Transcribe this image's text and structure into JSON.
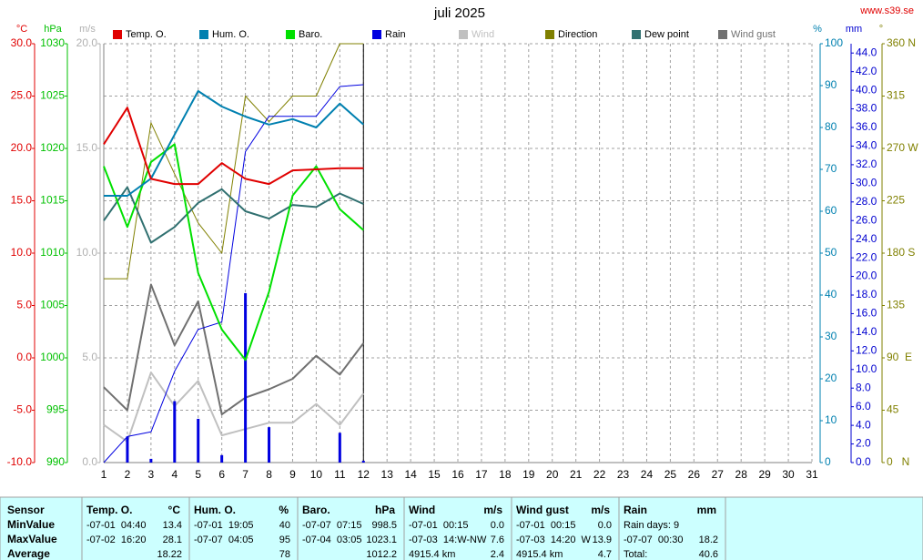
{
  "chart_data": {
    "type": "line",
    "title": "juli 2025",
    "source": "www.s39.se",
    "grid": true,
    "categories": [
      "1",
      "2",
      "3",
      "4",
      "5",
      "6",
      "7",
      "8",
      "9",
      "10",
      "11",
      "12",
      "13",
      "14",
      "15",
      "16",
      "17",
      "18",
      "19",
      "20",
      "21",
      "22",
      "23",
      "24",
      "25",
      "26",
      "27",
      "28",
      "29",
      "30",
      "31"
    ],
    "axes": [
      {
        "label": "°C",
        "color": "#e00000",
        "side": "left",
        "ylim": [
          -10,
          30
        ],
        "yticks": [
          {
            "value": -10,
            "label": "-10.0"
          },
          {
            "value": -5,
            "label": "-5.0"
          },
          {
            "value": 0,
            "label": "0.0"
          },
          {
            "value": 5,
            "label": "5.0"
          },
          {
            "value": 10,
            "label": "10.0"
          },
          {
            "value": 15,
            "label": "15.0"
          },
          {
            "value": 20,
            "label": "20.0"
          },
          {
            "value": 25,
            "label": "25.0"
          },
          {
            "value": 30,
            "label": "30.0"
          }
        ]
      },
      {
        "label": "hPa",
        "color": "#00c000",
        "side": "left",
        "ylim": [
          990,
          1030
        ],
        "yticks": [
          990,
          995,
          1000,
          1005,
          1010,
          1015,
          1020,
          1025,
          1030
        ]
      },
      {
        "label": "m/s",
        "color": "#b0b0b0",
        "side": "left",
        "ylim": [
          0,
          20
        ],
        "yticks": [
          {
            "value": 0,
            "label": "0.0"
          },
          {
            "value": 5,
            "label": "5.0"
          },
          {
            "value": 10,
            "label": "10.0"
          },
          {
            "value": 15,
            "label": "15.0"
          },
          {
            "value": 20,
            "label": "20.0"
          }
        ]
      },
      {
        "label": "%",
        "color": "#0080b0",
        "side": "right",
        "ylim": [
          0,
          100
        ],
        "yticks": [
          0,
          10,
          20,
          30,
          40,
          50,
          60,
          70,
          80,
          90,
          100
        ]
      },
      {
        "label": "mm",
        "color": "#0000d0",
        "side": "right",
        "ylim": [
          0,
          45
        ],
        "yticks": [
          {
            "value": 0,
            "label": "0.0"
          },
          {
            "value": 2,
            "label": "2.0"
          },
          {
            "value": 4,
            "label": "4.0"
          },
          {
            "value": 6,
            "label": "6.0"
          },
          {
            "value": 8,
            "label": "8.0"
          },
          {
            "value": 10,
            "label": "10.0"
          },
          {
            "value": 12,
            "label": "12.0"
          },
          {
            "value": 14,
            "label": "14.0"
          },
          {
            "value": 16,
            "label": "16.0"
          },
          {
            "value": 18,
            "label": "18.0"
          },
          {
            "value": 20,
            "label": "20.0"
          },
          {
            "value": 22,
            "label": "22.0"
          },
          {
            "value": 24,
            "label": "24.0"
          },
          {
            "value": 26,
            "label": "26.0"
          },
          {
            "value": 28,
            "label": "28.0"
          },
          {
            "value": 30,
            "label": "30.0"
          },
          {
            "value": 32,
            "label": "32.0"
          },
          {
            "value": 34,
            "label": "34.0"
          },
          {
            "value": 36,
            "label": "36.0"
          },
          {
            "value": 38,
            "label": "38.0"
          },
          {
            "value": 40,
            "label": "40.0"
          },
          {
            "value": 42,
            "label": "42.0"
          },
          {
            "value": 44,
            "label": "44.0"
          }
        ]
      },
      {
        "label": "°",
        "color": "#808000",
        "side": "right",
        "ylim": [
          0,
          360
        ],
        "yticks": [
          {
            "value": 0,
            "label": "0   N"
          },
          45,
          {
            "value": 90,
            "label": "90  E"
          },
          135,
          {
            "value": 180,
            "label": "180 S"
          },
          225,
          {
            "value": 270,
            "label": "270 W"
          },
          315,
          {
            "value": 360,
            "label": "360 N"
          }
        ]
      }
    ],
    "series": [
      {
        "name": "Temp. O.",
        "color": "#e00000",
        "axis": 0,
        "width": 2,
        "values": [
          20.4,
          23.9,
          17.1,
          16.6,
          16.6,
          18.6,
          17.1,
          16.6,
          17.9,
          18.0,
          18.1,
          18.1,
          null,
          null,
          null,
          null,
          null,
          null,
          null,
          null,
          null,
          null,
          null,
          null,
          null,
          null,
          null,
          null,
          null,
          null,
          null
        ]
      },
      {
        "name": "Hum. O.",
        "color": "#0080b0",
        "axis": 3,
        "width": 2,
        "values": [
          63.7,
          63.7,
          67.8,
          78.3,
          88.7,
          85.0,
          82.6,
          80.7,
          82.0,
          80.0,
          85.7,
          80.7,
          null,
          null,
          null,
          null,
          null,
          null,
          null,
          null,
          null,
          null,
          null,
          null,
          null,
          null,
          null,
          null,
          null,
          null,
          null
        ]
      },
      {
        "name": "Baro.",
        "color": "#00e000",
        "axis": 1,
        "width": 2,
        "values": [
          1018.3,
          1012.5,
          1018.7,
          1020.4,
          1008.1,
          1002.7,
          999.8,
          1006.3,
          1015.5,
          1018.3,
          1014.2,
          1012.2,
          null,
          null,
          null,
          null,
          null,
          null,
          null,
          null,
          null,
          null,
          null,
          null,
          null,
          null,
          null,
          null,
          null,
          null,
          null
        ]
      },
      {
        "name": "Rain",
        "color": "#0000e0",
        "axis": 4,
        "width": 1,
        "values": [
          0,
          2.8,
          3.3,
          9.8,
          14.3,
          15.1,
          33.4,
          37.2,
          37.2,
          37.2,
          40.4,
          40.6,
          null,
          null,
          null,
          null,
          null,
          null,
          null,
          null,
          null,
          null,
          null,
          null,
          null,
          null,
          null,
          null,
          null,
          null,
          null
        ],
        "daily": [
          0,
          2.8,
          0.4,
          6.6,
          4.7,
          0.8,
          18.2,
          3.8,
          0,
          0,
          3.2,
          0.2,
          null,
          null,
          null,
          null,
          null,
          null,
          null,
          null,
          null,
          null,
          null,
          null,
          null,
          null,
          null,
          null,
          null,
          null,
          null
        ]
      },
      {
        "name": "Wind",
        "color": "#c0c0c0",
        "axis": 2,
        "width": 2,
        "values": [
          1.8,
          1.0,
          4.3,
          2.7,
          3.9,
          1.3,
          1.6,
          1.9,
          1.9,
          2.8,
          1.8,
          3.3,
          null,
          null,
          null,
          null,
          null,
          null,
          null,
          null,
          null,
          null,
          null,
          null,
          null,
          null,
          null,
          null,
          null,
          null,
          null
        ]
      },
      {
        "name": "Direction",
        "color": "#808000",
        "axis": 5,
        "width": 1,
        "values": [
          158,
          158,
          292,
          248,
          206,
          180,
          315,
          293,
          315,
          315,
          360,
          360,
          null,
          null,
          null,
          null,
          null,
          null,
          null,
          null,
          null,
          null,
          null,
          null,
          null,
          null,
          null,
          null,
          null,
          null,
          null
        ]
      },
      {
        "name": "Dew point",
        "color": "#307070",
        "axis": 0,
        "width": 2,
        "values": [
          13.1,
          16.3,
          11.0,
          12.5,
          14.8,
          16.1,
          14.0,
          13.3,
          14.6,
          14.4,
          15.7,
          14.7,
          null,
          null,
          null,
          null,
          null,
          null,
          null,
          null,
          null,
          null,
          null,
          null,
          null,
          null,
          null,
          null,
          null,
          null,
          null
        ]
      },
      {
        "name": "Wind gust",
        "color": "#707070",
        "axis": 2,
        "width": 2,
        "values": [
          3.6,
          2.5,
          8.5,
          5.6,
          7.7,
          2.3,
          3.1,
          3.5,
          4.0,
          5.1,
          4.2,
          5.7,
          null,
          null,
          null,
          null,
          null,
          null,
          null,
          null,
          null,
          null,
          null,
          null,
          null,
          null,
          null,
          null,
          null,
          null,
          null
        ]
      }
    ]
  },
  "table": {
    "header": "Sensor",
    "columns": [
      {
        "name": "Temp. O.",
        "unit": "°C"
      },
      {
        "name": "Hum. O.",
        "unit": "%"
      },
      {
        "name": "Baro.",
        "unit": "hPa"
      },
      {
        "name": "Wind",
        "unit": "m/s"
      },
      {
        "name": "Wind gust",
        "unit": "m/s"
      },
      {
        "name": "Rain",
        "unit": "mm"
      }
    ],
    "rows": [
      {
        "label": "MinValue",
        "cells": [
          {
            "text": "-07-01  04:40",
            "value": "13.4"
          },
          {
            "text": "-07-01  19:05",
            "value": "40"
          },
          {
            "text": "-07-07  07:15",
            "value": "998.5"
          },
          {
            "text": "-07-01  00:15",
            "value": "0.0"
          },
          {
            "text": "-07-01  00:15",
            "value": "0.0"
          },
          {
            "text": "Rain days: 9"
          }
        ]
      },
      {
        "label": "MaxValue",
        "cells": [
          {
            "text": "-07-02  16:20",
            "value": "28.1"
          },
          {
            "text": "-07-07  04:05",
            "value": "95"
          },
          {
            "text": "-07-04  03:05",
            "value": "1023.1"
          },
          {
            "text": "-07-03  14:W-NW",
            "value": "7.6"
          },
          {
            "text": "-07-03  14:20  W",
            "value": "13.9"
          },
          {
            "text": "-07-07  00:30",
            "value": "18.2"
          }
        ]
      },
      {
        "label": "Average",
        "cells": [
          {
            "value": "18.22"
          },
          {
            "value": "78"
          },
          {
            "value": "1012.2"
          },
          {
            "text": "4915.4 km",
            "value": "2.4"
          },
          {
            "text": "4915.4 km",
            "value": "4.7"
          },
          {
            "text": "Total:",
            "value": "40.6"
          }
        ]
      }
    ]
  }
}
